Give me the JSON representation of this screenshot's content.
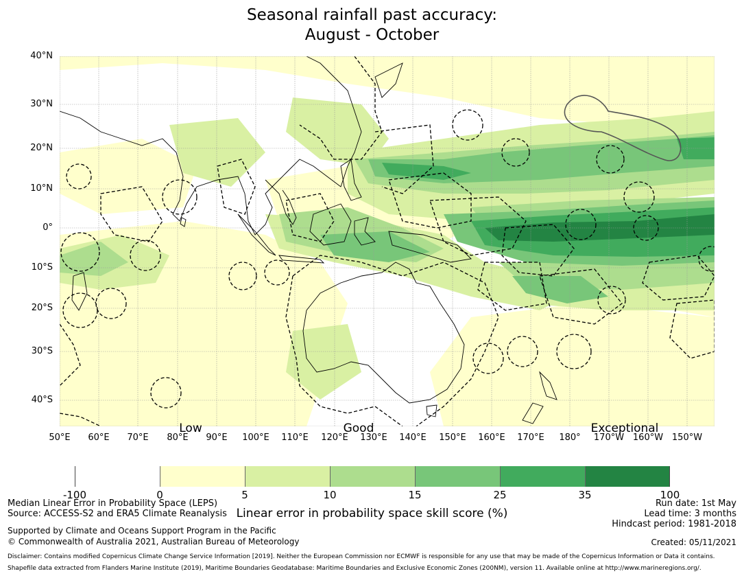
{
  "title": {
    "line1": "Seasonal rainfall past accuracy:",
    "line2": "August - October"
  },
  "map": {
    "lat_labels": [
      "40°N",
      "30°N",
      "20°N",
      "10°N",
      "0°",
      "10°S",
      "20°S",
      "30°S",
      "40°S"
    ],
    "lon_labels": [
      "50°E",
      "60°E",
      "70°E",
      "80°E",
      "90°E",
      "100°E",
      "110°E",
      "120°E",
      "130°E",
      "140°E",
      "150°E",
      "160°E",
      "170°E",
      "180°",
      "170°W",
      "160°W",
      "150°W"
    ],
    "skill_labels": [
      "Low",
      "Good",
      "Exceptional"
    ],
    "colors": {
      "band0": "#ffffff",
      "band1": "#ffffcc",
      "band2": "#d9f0a3",
      "band3": "#addd8e",
      "band4": "#78c679",
      "band5": "#41ab5d",
      "band6": "#238443",
      "coast": "#000000",
      "eez": "#000000"
    }
  },
  "colorbar": {
    "ticks": [
      "-100",
      "0",
      "5",
      "10",
      "15",
      "25",
      "35",
      "100"
    ],
    "label": "Linear error in probability space skill score (%)"
  },
  "footer": {
    "left_line1": "Median Linear Error in Probability Space (LEPS)",
    "left_line2": "Source: ACCESS-S2 and ERA5 Climate Reanalysis",
    "left_line3": "Supported by Climate and Oceans Support Program in the Pacific",
    "left_line4": "© Commonwealth of Australia 2021, Australian Bureau of Meteorology",
    "right_line1": "Run date: 1st May",
    "right_line2": "Lead time: 3 months",
    "right_line3": "Hindcast period: 1981-2018",
    "created": "Created: 05/11/2021",
    "disclaimer": "Disclaimer: Contains modified Copernicus Climate Change Service Information [2019]. Neither the European Commission nor ECMWF is responsible for any use that may be made of the Copernicus Information or Data it contains.",
    "shapefile": "Shapefile data extracted from Flanders Marine Institute (2019), Maritime Boundaries Geodatabase: Maritime Boundaries and Exclusive Economic Zones (200NM), version 11. Available online at http://www.marineregions.org/."
  }
}
